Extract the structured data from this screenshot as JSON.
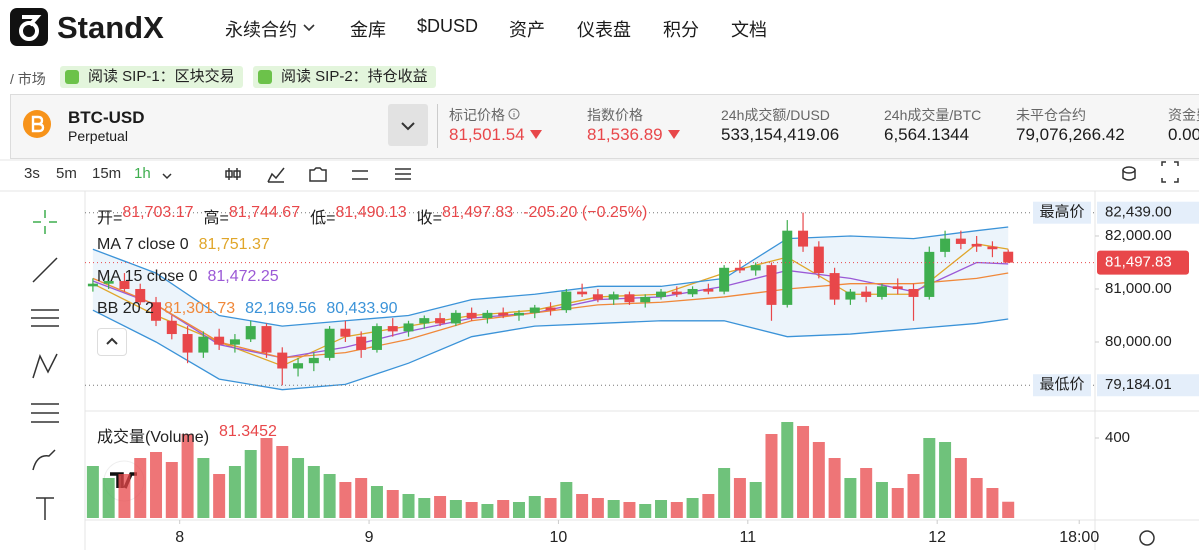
{
  "header": {
    "brand": "StandX",
    "nav": [
      "永续合约",
      "金库",
      "$DUSD",
      "资产",
      "仪表盘",
      "积分",
      "文档"
    ],
    "dropdown_index": 0
  },
  "breadcrumb": {
    "path": "/ 市场",
    "links": [
      "阅读 SIP-1：区块交易",
      "阅读 SIP-2：持仓收益"
    ]
  },
  "ticker": {
    "symbol": "BTC-USD",
    "kind": "Perpetual",
    "stats": [
      {
        "label": "标记价格",
        "value": "81,501.54",
        "down": true,
        "info": true
      },
      {
        "label": "指数价格",
        "value": "81,536.89",
        "down": true
      },
      {
        "label": "24h成交额/DUSD",
        "value": "533,154,419.06"
      },
      {
        "label": "24h成交量/BTC",
        "value": "6,564.1344"
      },
      {
        "label": "未平仓合约",
        "value": "79,076,266.42"
      },
      {
        "label": "资金费率",
        "value": "0.00"
      }
    ]
  },
  "toolbar": {
    "intervals": [
      "3s",
      "5m",
      "15m",
      "1h"
    ],
    "active": 3
  },
  "chart_data": {
    "type": "candlestick",
    "up_color": "#3fae4f",
    "down_color": "#e8474a",
    "xlim": [
      12,
      140
    ],
    "xticks": [
      {
        "value": 24,
        "label": "8"
      },
      {
        "value": 48,
        "label": "9"
      },
      {
        "value": 72,
        "label": "10"
      },
      {
        "value": 96,
        "label": "11"
      },
      {
        "value": 120,
        "label": "12"
      },
      {
        "value": 138,
        "label": "18:00"
      }
    ],
    "ylim": [
      78717,
      82773
    ],
    "yticks": [
      {
        "value": 80000,
        "label": "80,000.00"
      },
      {
        "value": 81000,
        "label": "81,000.00"
      },
      {
        "value": 82000,
        "label": "82,000.00"
      }
    ],
    "x": [
      13,
      15,
      17,
      19,
      21,
      23,
      25,
      27,
      29,
      31,
      33,
      35,
      37,
      39,
      41,
      43,
      45,
      47,
      49,
      51,
      53,
      55,
      57,
      59,
      61,
      63,
      65,
      67,
      69,
      71,
      73,
      75,
      77,
      79,
      81,
      83,
      85,
      87,
      89,
      91,
      93,
      95,
      97,
      99,
      101,
      103,
      105,
      107,
      109,
      111,
      113,
      115,
      117,
      119,
      121,
      123,
      125,
      127,
      129
    ],
    "open": [
      81050,
      81100,
      81150,
      81000,
      80750,
      80400,
      80150,
      79800,
      80100,
      79950,
      80050,
      80300,
      79800,
      79500,
      79600,
      79700,
      80250,
      80100,
      79850,
      80300,
      80200,
      80350,
      80450,
      80350,
      80550,
      80450,
      80550,
      80500,
      80550,
      80650,
      80600,
      80950,
      80900,
      80800,
      80900,
      80750,
      80850,
      80950,
      80900,
      81000,
      80950,
      81400,
      81350,
      81450,
      80700,
      82100,
      81800,
      81300,
      80800,
      80950,
      80850,
      81050,
      81000,
      80850,
      81700,
      81950,
      81850,
      81800,
      81703.17
    ],
    "high": [
      81200,
      81250,
      81300,
      81100,
      80850,
      80500,
      80300,
      80200,
      80250,
      80150,
      80400,
      80350,
      79900,
      79700,
      79800,
      80300,
      80400,
      80200,
      80350,
      80450,
      80400,
      80500,
      80550,
      80600,
      80650,
      80600,
      80650,
      80600,
      80700,
      80750,
      81000,
      81100,
      81000,
      80950,
      80950,
      80900,
      81000,
      81050,
      81050,
      81100,
      81450,
      81550,
      81500,
      81500,
      82300,
      82439,
      81900,
      81400,
      81000,
      81050,
      81100,
      81200,
      81100,
      81800,
      82100,
      82100,
      82000,
      81900,
      81744.67
    ],
    "low": [
      80950,
      81000,
      80950,
      80700,
      80300,
      80050,
      79600,
      79700,
      79850,
      79800,
      80000,
      79700,
      79184.01,
      79350,
      79450,
      79650,
      80000,
      79700,
      79800,
      80100,
      80100,
      80250,
      80300,
      80300,
      80400,
      80350,
      80450,
      80400,
      80450,
      80500,
      80550,
      80850,
      80750,
      80700,
      80700,
      80650,
      80800,
      80850,
      80850,
      80900,
      80900,
      81300,
      81250,
      80400,
      80650,
      81700,
      81200,
      80700,
      80700,
      80750,
      80800,
      80900,
      80400,
      80800,
      81600,
      81750,
      81700,
      81600,
      81490.13
    ],
    "close": [
      81100,
      81150,
      81000,
      80750,
      80400,
      80150,
      79800,
      80100,
      79950,
      80050,
      80300,
      79800,
      79500,
      79600,
      79700,
      80250,
      80100,
      79850,
      80300,
      80200,
      80350,
      80450,
      80350,
      80550,
      80450,
      80550,
      80500,
      80550,
      80650,
      80600,
      80950,
      80900,
      80800,
      80900,
      80750,
      80850,
      80950,
      80900,
      81000,
      80950,
      81400,
      81350,
      81450,
      80700,
      82100,
      81800,
      81300,
      80800,
      80950,
      80850,
      81050,
      81000,
      80850,
      81700,
      81950,
      81850,
      81800,
      81750,
      81497.83
    ],
    "legend": {
      "ohlc": [
        {
          "label": "开=",
          "value": "81,703.17"
        },
        {
          "label": "高=",
          "value": "81,744.67"
        },
        {
          "label": "低=",
          "value": "81,490.13"
        },
        {
          "label": "收=",
          "value": "81,497.83"
        }
      ],
      "change": "-205.20 (−0.25%)"
    },
    "overlay_x": [
      13,
      21,
      29,
      37,
      45,
      53,
      61,
      69,
      77,
      85,
      93,
      101,
      109,
      117,
      125,
      129
    ],
    "indicators": [
      {
        "name": "MA 7 close 0",
        "readouts": [
          "81,751.37"
        ],
        "lines": [
          {
            "color": "#e0a62a",
            "values": [
              81100,
              80500,
              80000,
              79550,
              80100,
              80300,
              80500,
              80600,
              80850,
              80900,
              81300,
              81600,
              80900,
              80900,
              81850,
              81751.37
            ]
          }
        ]
      },
      {
        "name": "MA 15 close 0",
        "readouts": [
          "81,472.25"
        ],
        "lines": [
          {
            "color": "#9b59d6",
            "values": [
              81150,
              80700,
              79950,
              79700,
              79900,
              80200,
              80450,
              80550,
              80800,
              80850,
              81050,
              81350,
              81200,
              80950,
              81500,
              81472.25
            ]
          }
        ]
      },
      {
        "name": "BB 20 2",
        "readouts": [
          "81,301.73",
          "82,169.56",
          "80,433.90"
        ],
        "band_color": "#dcebf8",
        "lines": [
          {
            "color": "#f0883a",
            "values": [
              81200,
              80700,
              80000,
              79700,
              79800,
              80050,
              80400,
              80550,
              80700,
              80750,
              80850,
              81000,
              81100,
              81100,
              81200,
              81301.73
            ]
          },
          {
            "color": "#3b93d8",
            "values": [
              81750,
              81300,
              80500,
              80300,
              80400,
              80500,
              80800,
              80900,
              81050,
              81050,
              81200,
              81950,
              82000,
              81950,
              82100,
              82169.56
            ]
          },
          {
            "color": "#3b93d8",
            "values": [
              80600,
              80000,
              79300,
              79100,
              79200,
              79600,
              80100,
              80300,
              80350,
              80400,
              80400,
              80100,
              80150,
              80250,
              80350,
              80433.9
            ]
          }
        ]
      }
    ],
    "high_marker": {
      "label": "最高价",
      "value": 82439,
      "value_label": "82,439.00"
    },
    "low_marker": {
      "label": "最低价",
      "value": 79184.01,
      "value_label": "79,184.01"
    },
    "last_price": {
      "value": 81497.83,
      "value_label": "81,497.83"
    },
    "volume": {
      "title": "成交量(Volume)",
      "readout": "81.3452",
      "ylim": [
        0,
        515
      ],
      "yticks": [
        400
      ],
      "values": [
        260,
        200,
        220,
        300,
        330,
        280,
        420,
        300,
        220,
        260,
        340,
        400,
        360,
        300,
        260,
        220,
        180,
        200,
        160,
        140,
        120,
        100,
        110,
        90,
        80,
        70,
        90,
        80,
        110,
        100,
        180,
        120,
        100,
        90,
        80,
        70,
        90,
        80,
        100,
        120,
        250,
        200,
        180,
        420,
        480,
        460,
        380,
        300,
        200,
        250,
        180,
        150,
        220,
        400,
        380,
        300,
        200,
        150,
        81.3452
      ]
    }
  }
}
